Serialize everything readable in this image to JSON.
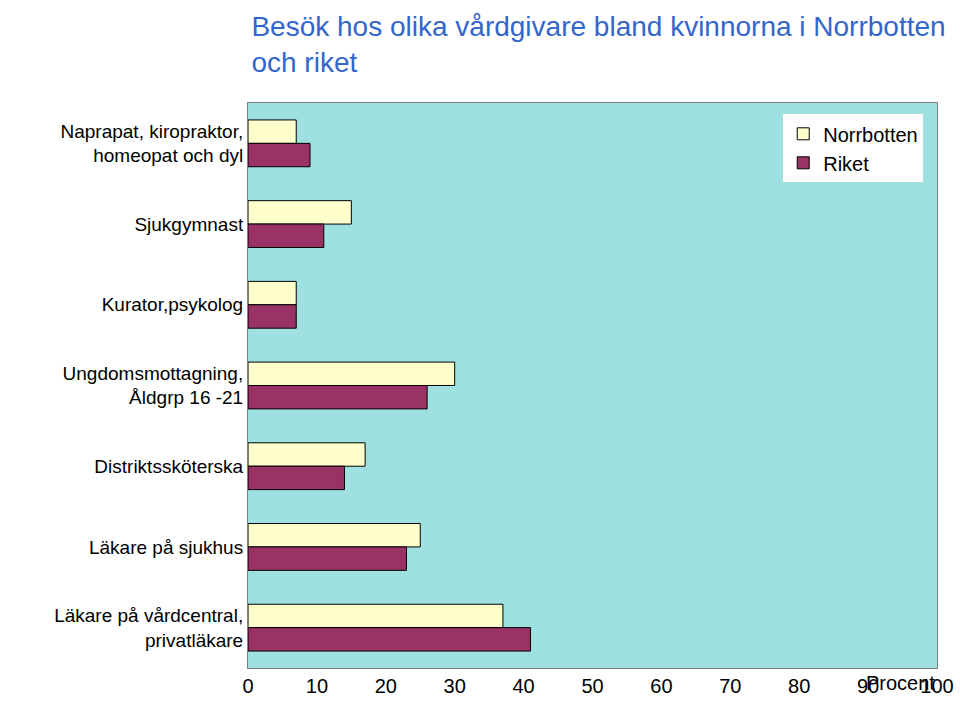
{
  "chart_data": {
    "type": "bar",
    "title": "Besök hos olika vårdgivare bland kvinnorna i Norrbotten och riket",
    "orientation": "horizontal",
    "categories": [
      "Naprapat, kiropraktor, homeopat och dyl",
      "Sjukgymnast",
      "Kurator,psykolog",
      "Ungdomsmottagning, Åldgrp 16 -21",
      "Distriktssköterska",
      "Läkare på sjukhus",
      "Läkare på vårdcentral, privatläkare"
    ],
    "series": [
      {
        "name": "Norrbotten",
        "color": "#FFFFCC",
        "values": [
          7,
          15,
          7,
          30,
          17,
          25,
          37
        ]
      },
      {
        "name": "Riket",
        "color": "#993366",
        "values": [
          9,
          11,
          7,
          26,
          14,
          23,
          41
        ]
      }
    ],
    "x_label": "Procent",
    "xlim": [
      0,
      100
    ],
    "xticks": [
      0,
      10,
      20,
      30,
      40,
      50,
      60,
      70,
      80,
      90,
      100
    ],
    "grid": false,
    "legend": "top right"
  }
}
